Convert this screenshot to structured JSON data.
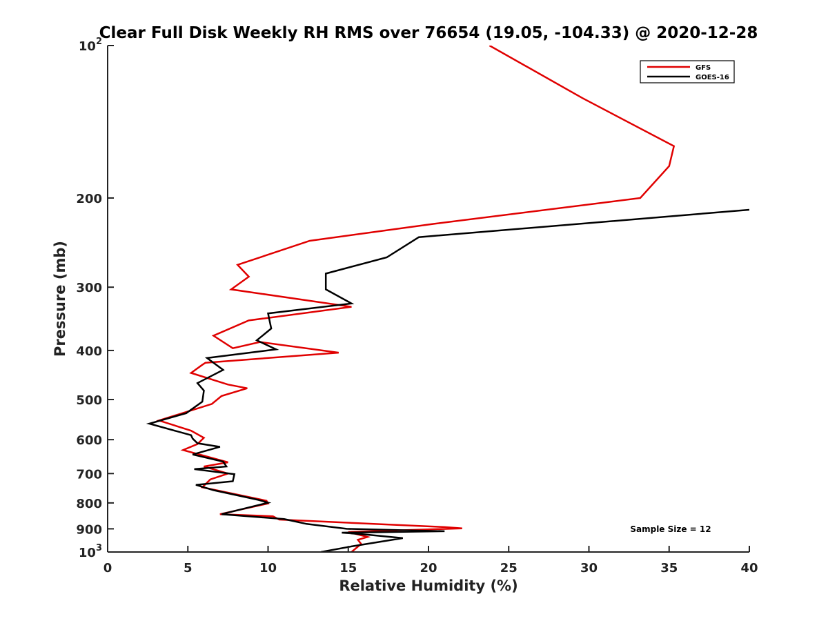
{
  "chart_data": {
    "type": "line",
    "title": "Clear Full Disk Weekly RH RMS over 76654 (19.05, -104.33) @ 2020-12-28",
    "xlabel": "Relative Humidity (%)",
    "ylabel": "Pressure (mb)",
    "xlim": [
      0,
      40
    ],
    "ylim": [
      100,
      1000
    ],
    "y_scale": "log",
    "y_reversed": true,
    "x_ticks": [
      0,
      5,
      10,
      15,
      20,
      25,
      30,
      35,
      40
    ],
    "x_tick_labels": [
      "0",
      "5",
      "10",
      "15",
      "20",
      "25",
      "30",
      "35",
      "40"
    ],
    "y_ticks": [
      100,
      200,
      300,
      400,
      500,
      600,
      700,
      800,
      900,
      1000
    ],
    "y_tick_labels": [
      {
        "base": "10",
        "exp": "2"
      },
      {
        "base": "200",
        "exp": ""
      },
      {
        "base": "300",
        "exp": ""
      },
      {
        "base": "400",
        "exp": ""
      },
      {
        "base": "500",
        "exp": ""
      },
      {
        "base": "600",
        "exp": ""
      },
      {
        "base": "700",
        "exp": ""
      },
      {
        "base": "800",
        "exp": ""
      },
      {
        "base": "900",
        "exp": ""
      },
      {
        "base": "10",
        "exp": "3"
      }
    ],
    "legend_position": "top-right",
    "annotation": "Sample Size = 12",
    "series": [
      {
        "name": "GFS",
        "color": "#e00000",
        "x": [
          23.8,
          29.6,
          35.3,
          35.0,
          33.2,
          20.3,
          12.6,
          8.1,
          8.8,
          7.7,
          15.2,
          8.8,
          6.6,
          7.8,
          9.5,
          14.4,
          6.1,
          5.9,
          5.2,
          7.5,
          8.7,
          7.1,
          6.5,
          3.2,
          5.2,
          6.0,
          5.6,
          4.7,
          7.5,
          6.0,
          7.5,
          6.4,
          5.9,
          9.9,
          10.0,
          7.0,
          10.3,
          10.7,
          21.0,
          22.1,
          15.0,
          16.2,
          15.6,
          15.8,
          15.2
        ],
        "y": [
          100,
          127,
          158,
          173,
          200,
          225,
          243,
          271,
          286,
          303,
          328,
          349,
          374,
          396,
          385,
          404,
          423,
          427,
          443,
          467,
          475,
          492,
          510,
          550,
          576,
          595,
          612,
          629,
          665,
          678,
          700,
          719,
          745,
          792,
          802,
          842,
          850,
          863,
          893,
          898,
          913,
          934,
          946,
          964,
          1000
        ]
      },
      {
        "name": "GOES-16",
        "color": "#000000",
        "x": [
          40.0,
          19.4,
          17.4,
          13.6,
          13.6,
          15.2,
          10.0,
          10.2,
          9.3,
          10.5,
          6.2,
          7.2,
          5.6,
          6.0,
          5.9,
          4.9,
          2.6,
          5.2,
          5.3,
          5.6,
          7.0,
          5.3,
          7.2,
          7.4,
          5.4,
          7.9,
          7.8,
          5.5,
          6.6,
          9.4,
          10.0,
          7.1,
          11.0,
          12.4,
          14.9,
          21.0,
          14.6,
          16.0,
          18.4,
          15.2,
          13.3
        ],
        "y": [
          211,
          239,
          262,
          282,
          303,
          323,
          338,
          362,
          382,
          398,
          414,
          437,
          464,
          480,
          505,
          532,
          558,
          588,
          597,
          610,
          620,
          642,
          663,
          678,
          686,
          702,
          725,
          737,
          755,
          789,
          799,
          842,
          861,
          880,
          900,
          910,
          916,
          923,
          939,
          975,
          1000
        ]
      }
    ]
  }
}
